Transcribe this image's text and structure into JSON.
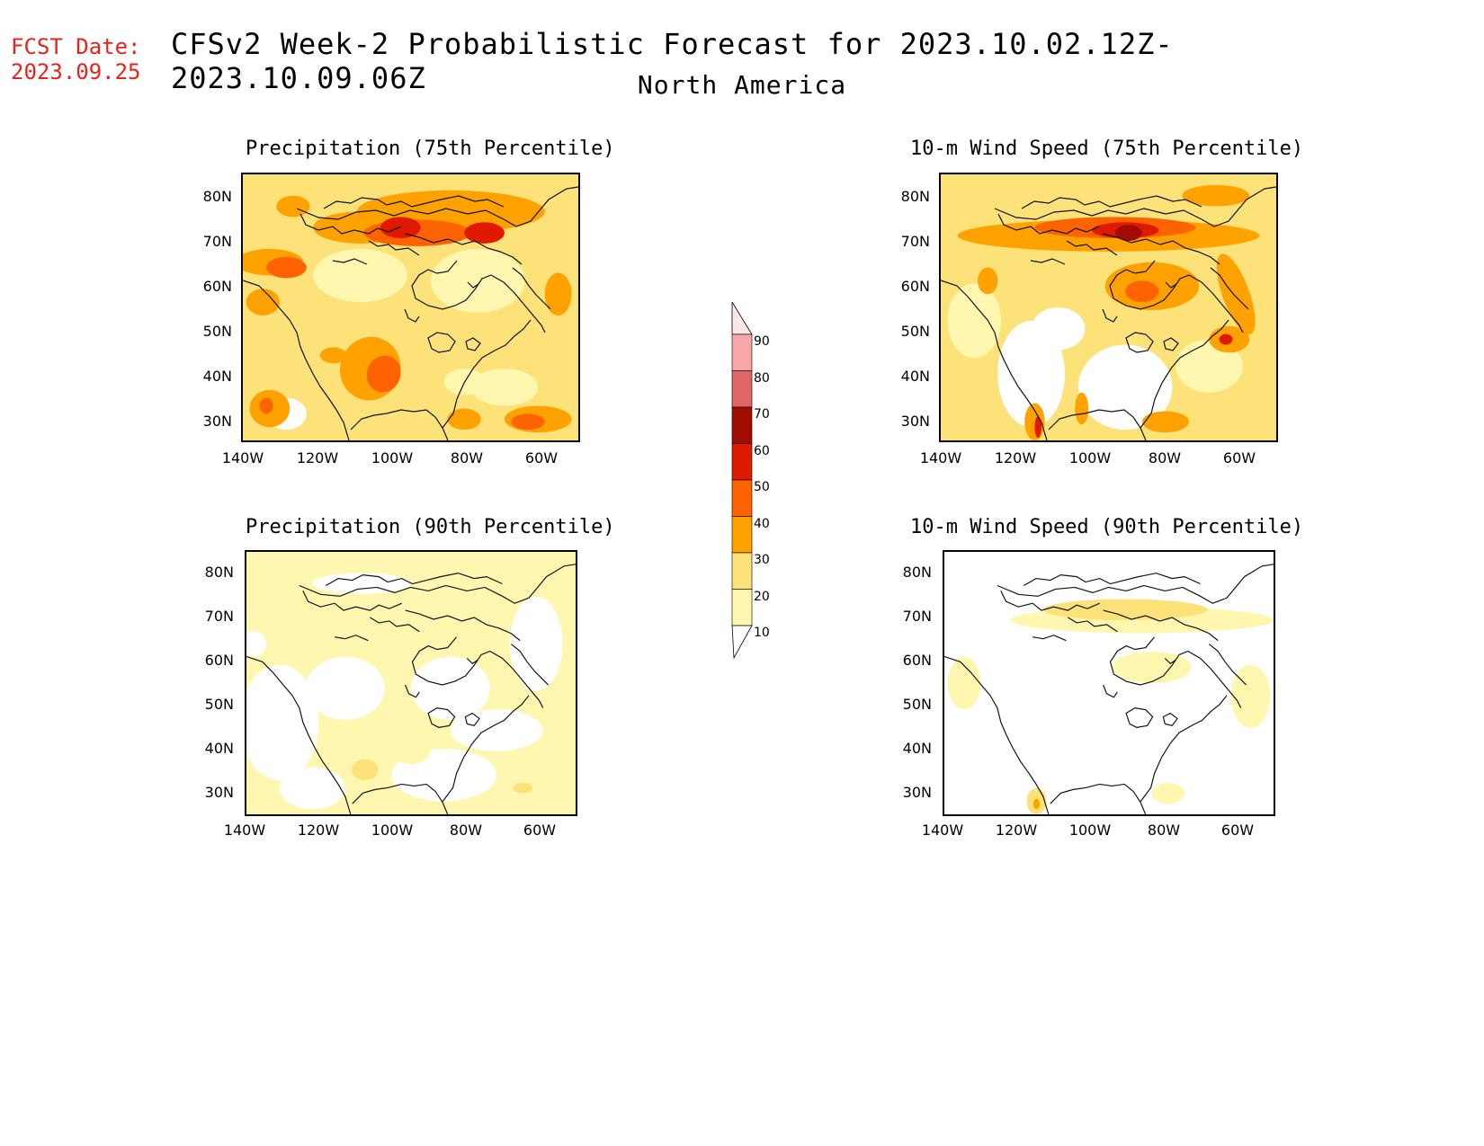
{
  "header": {
    "fcst_label": "FCST Date:",
    "fcst_date": "2023.09.25",
    "title": "CFSv2 Week-2 Probabilistic Forecast for 2023.10.02.12Z-2023.10.09.06Z",
    "region": "North America"
  },
  "panels": [
    {
      "title": "Precipitation (75th Percentile)",
      "field": "precip75"
    },
    {
      "title": "10-m Wind Speed (75th Percentile)",
      "field": "wind75"
    },
    {
      "title": "Precipitation (90th Percentile)",
      "field": "precip90"
    },
    {
      "title": "10-m Wind Speed (90th Percentile)",
      "field": "wind90"
    }
  ],
  "axes": {
    "lat_labels": [
      "80N",
      "70N",
      "60N",
      "50N",
      "40N",
      "30N"
    ],
    "lon_labels": [
      "140W",
      "120W",
      "100W",
      "80W",
      "60W"
    ]
  },
  "legend": {
    "levels": [
      "90",
      "80",
      "70",
      "60",
      "50",
      "40",
      "30",
      "20",
      "10"
    ],
    "colors": [
      "#f7a7a7",
      "#e06666",
      "#a20c00",
      "#e01a00",
      "#fd6300",
      "#ffa200",
      "#fde27a",
      "#fff7b0"
    ],
    "top_color": "#fde6e6"
  }
}
